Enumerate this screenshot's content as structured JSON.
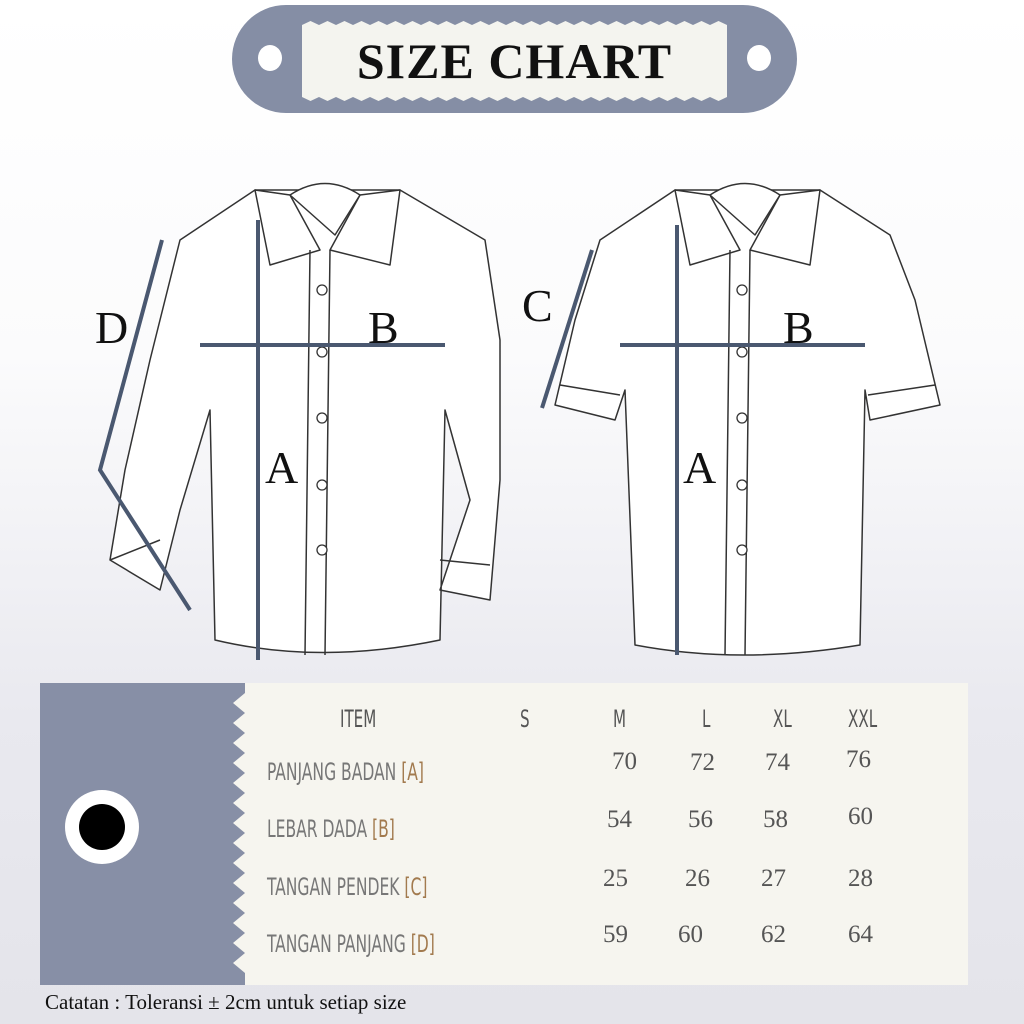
{
  "banner": {
    "title": "SIZE CHART"
  },
  "diagram": {
    "long_sleeve_labels": {
      "d": "D",
      "b": "B",
      "a": "A"
    },
    "short_sleeve_labels": {
      "c": "C",
      "b": "B",
      "a": "A"
    },
    "line_color": "#4a5870"
  },
  "table": {
    "headers": [
      "ITEM",
      "S",
      "M",
      "L",
      "XL",
      "XXL"
    ],
    "rows": [
      {
        "label": "PANJANG BADAN",
        "code": "[A]",
        "values": [
          "",
          "70",
          "72",
          "74",
          "76"
        ]
      },
      {
        "label": "LEBAR DADA",
        "code": "[B]",
        "values": [
          "",
          "54",
          "56",
          "58",
          "60"
        ]
      },
      {
        "label": "TANGAN PENDEK",
        "code": "[C]",
        "values": [
          "",
          "25",
          "26",
          "27",
          "28"
        ]
      },
      {
        "label": "TANGAN PANJANG",
        "code": "[D]",
        "values": [
          "",
          "59",
          "60",
          "62",
          "64"
        ]
      }
    ]
  },
  "note": "Catatan : Toleransi  ± 2cm untuk setiap size",
  "colors": {
    "banner": "#858ea5",
    "panel": "#f6f5ef",
    "code": "#a27a4e"
  }
}
